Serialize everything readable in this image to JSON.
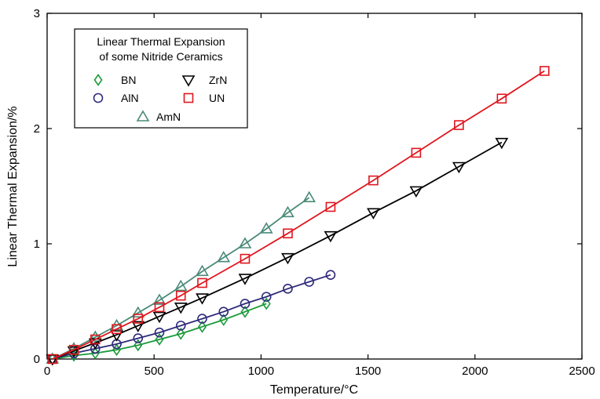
{
  "chart_data": {
    "type": "line",
    "xlabel": "Temperature/°C",
    "ylabel": "Linear Thermal Expansion/%",
    "xlim": [
      0,
      2500
    ],
    "ylim": [
      0,
      3
    ],
    "xticks": [
      0,
      500,
      1000,
      1500,
      2000,
      2500
    ],
    "yticks": [
      0,
      1,
      2,
      3
    ],
    "grid": false,
    "legend": {
      "placement": "top-left",
      "title_line1": "Linear Thermal Expansion",
      "title_line2": "of some Nitride Ceramics"
    },
    "series": [
      {
        "name": "BN",
        "marker": "diamond",
        "color": "#1a9a3a",
        "x": [
          25,
          125,
          225,
          325,
          425,
          525,
          625,
          725,
          825,
          925,
          1025
        ],
        "y": [
          0.0,
          0.03,
          0.05,
          0.08,
          0.12,
          0.17,
          0.22,
          0.28,
          0.34,
          0.41,
          0.48
        ]
      },
      {
        "name": "AlN",
        "marker": "circle",
        "color": "#2e2a7a",
        "x": [
          25,
          125,
          225,
          325,
          425,
          525,
          625,
          725,
          825,
          925,
          1025,
          1125,
          1225,
          1325
        ],
        "y": [
          0.0,
          0.05,
          0.09,
          0.13,
          0.18,
          0.23,
          0.29,
          0.35,
          0.41,
          0.48,
          0.54,
          0.61,
          0.67,
          0.73
        ]
      },
      {
        "name": "AmN",
        "marker": "triangle-up",
        "color": "#4a8a78",
        "x": [
          25,
          125,
          225,
          325,
          425,
          525,
          625,
          725,
          825,
          925,
          1025,
          1125,
          1225
        ],
        "y": [
          0.0,
          0.09,
          0.19,
          0.29,
          0.4,
          0.51,
          0.63,
          0.76,
          0.88,
          1.0,
          1.13,
          1.27,
          1.4
        ]
      },
      {
        "name": "ZrN",
        "marker": "triangle-down",
        "color": "#000000",
        "x": [
          25,
          125,
          225,
          325,
          425,
          525,
          625,
          725,
          925,
          1125,
          1325,
          1525,
          1725,
          1925,
          2125
        ],
        "y": [
          0.0,
          0.07,
          0.14,
          0.21,
          0.29,
          0.37,
          0.45,
          0.53,
          0.7,
          0.88,
          1.07,
          1.27,
          1.46,
          1.67,
          1.88
        ]
      },
      {
        "name": "UN",
        "marker": "square",
        "color": "#e0161e",
        "x": [
          25,
          125,
          225,
          325,
          425,
          525,
          625,
          725,
          925,
          1125,
          1325,
          1525,
          1725,
          1925,
          2125,
          2325
        ],
        "y": [
          0.0,
          0.08,
          0.17,
          0.26,
          0.35,
          0.45,
          0.55,
          0.66,
          0.87,
          1.09,
          1.32,
          1.55,
          1.79,
          2.03,
          2.26,
          2.5
        ]
      }
    ]
  }
}
